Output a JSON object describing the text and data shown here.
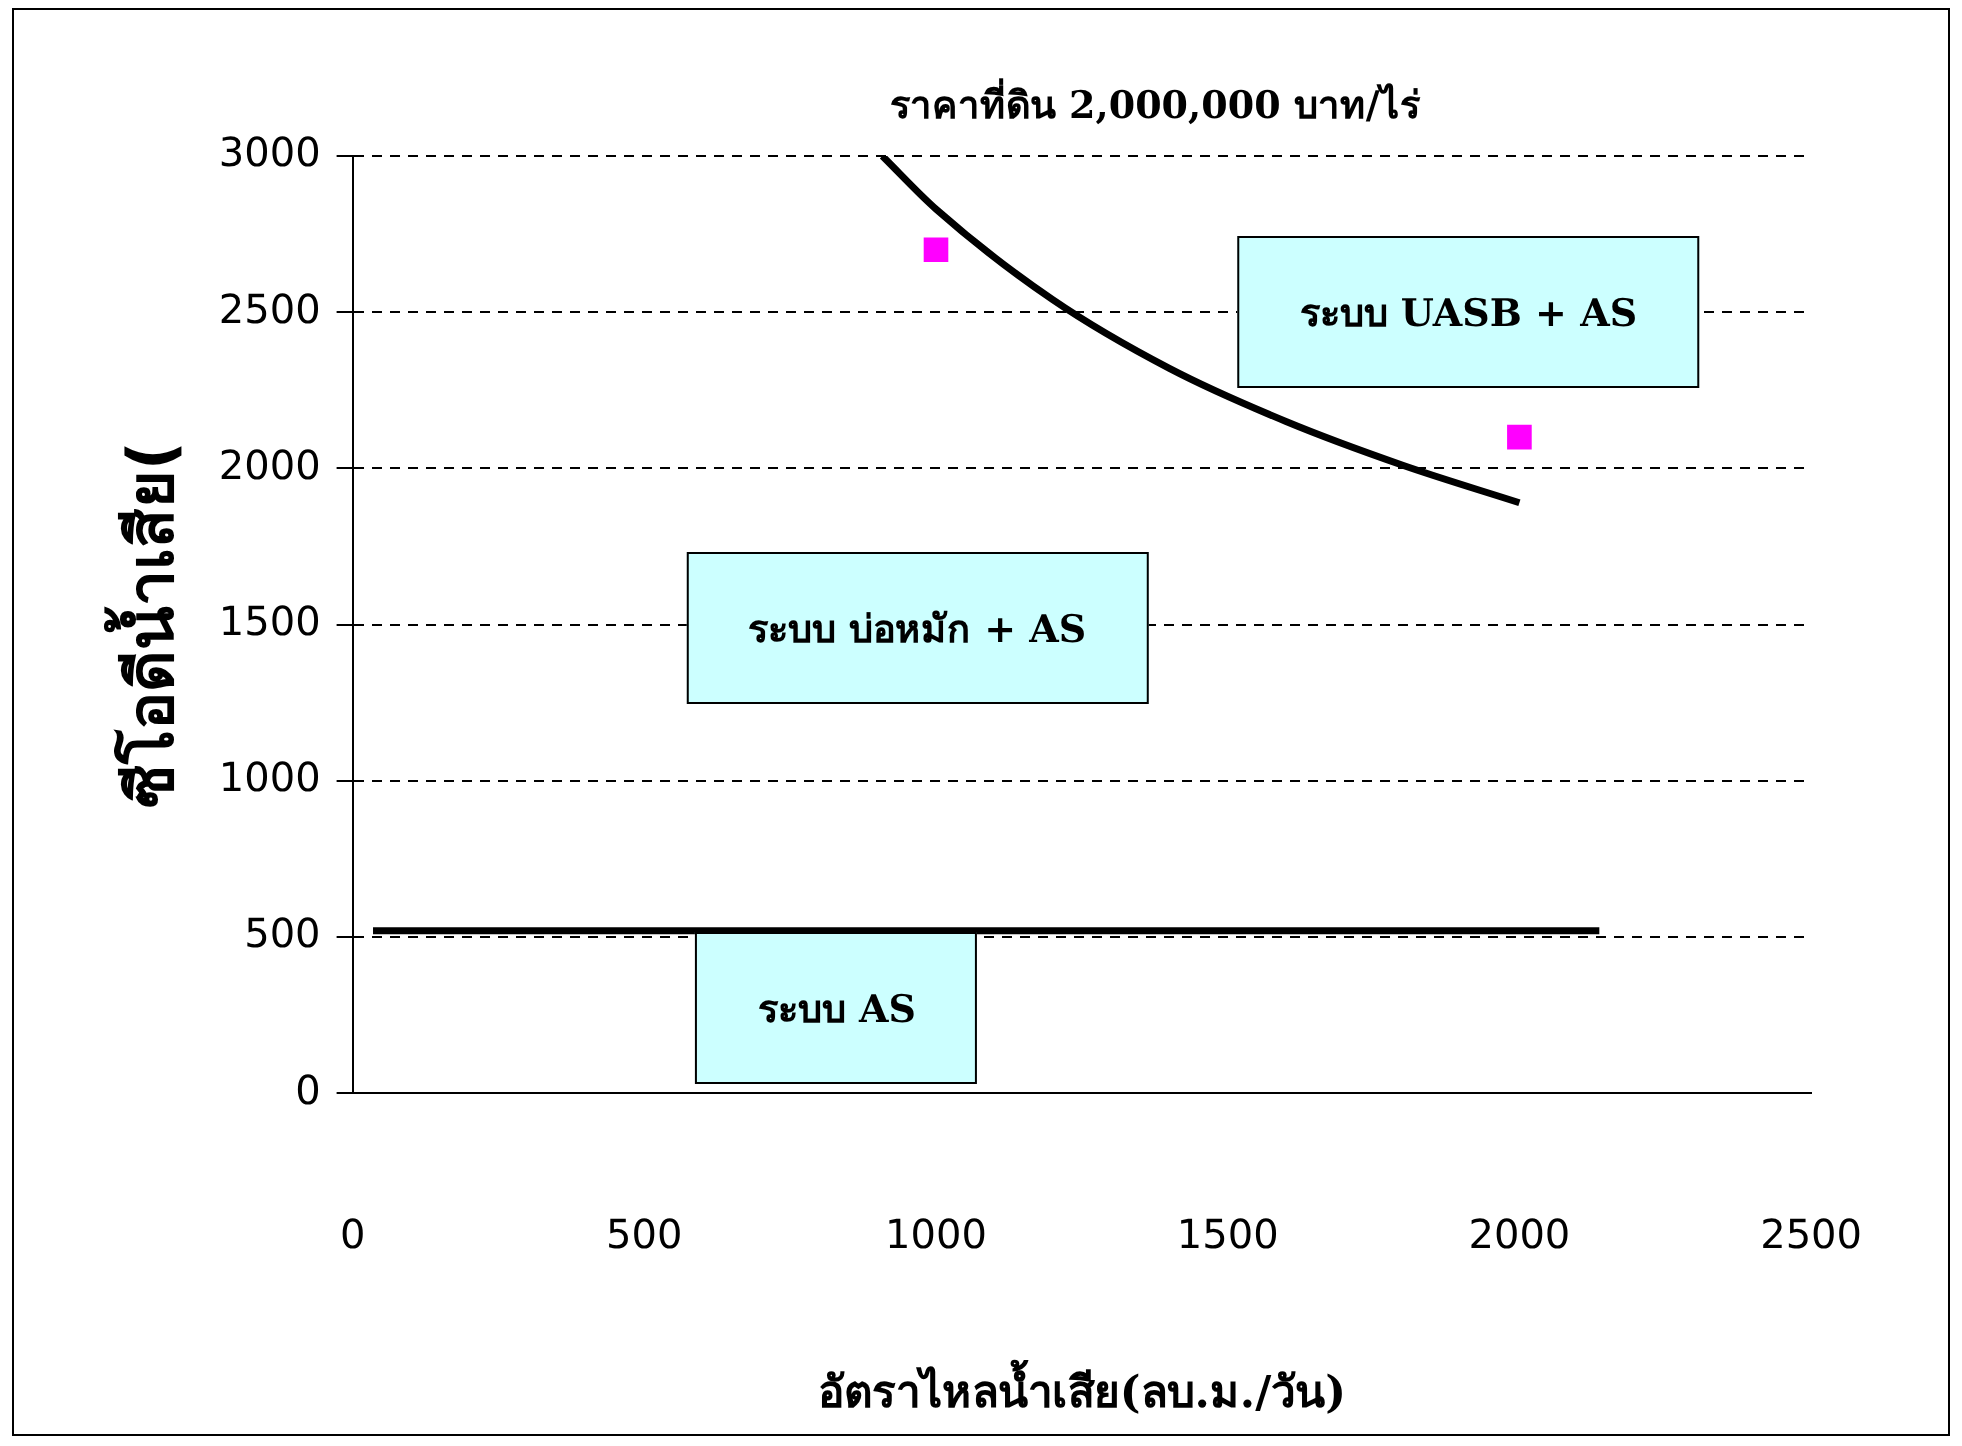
{
  "chart_data": {
    "type": "scatter",
    "xlabel": "อัตราไหลน้ำเสีย(ลบ.ม./วัน)",
    "ylabel": "ซีโอดีน้ำเสีย(",
    "xlim": [
      0,
      2500
    ],
    "xticks": [
      0,
      500,
      1000,
      1500,
      2000,
      2500
    ],
    "ylim": [
      0,
      3000
    ],
    "yticks": [
      0,
      500,
      1000,
      1500,
      2000,
      2500,
      3000
    ],
    "grid": "y",
    "legend": false,
    "series": [
      {
        "type": "line",
        "color": "#000000",
        "marker": "none",
        "line_style": "solid",
        "x": [
          908,
          1000,
          1200,
          1400,
          1600,
          1800,
          2000
        ],
        "values": [
          3000,
          2830,
          2540,
          2320,
          2150,
          2010,
          1890
        ]
      },
      {
        "type": "line",
        "color": "#000000",
        "marker": "none",
        "line_style": "solid",
        "x": [
          35,
          2137
        ],
        "values": [
          520,
          520
        ]
      },
      {
        "type": "scatter",
        "color": "#ff00ff",
        "marker": "square",
        "x": [
          1000,
          2000
        ],
        "values": [
          2700,
          2100
        ]
      }
    ],
    "annotations": [
      "ราคาที่ดิน 2,000,000 บาท/ไร่",
      "ระบบ UASB + AS",
      "ระบบ บ่อหมัก + AS",
      "ระบบ AS"
    ]
  }
}
